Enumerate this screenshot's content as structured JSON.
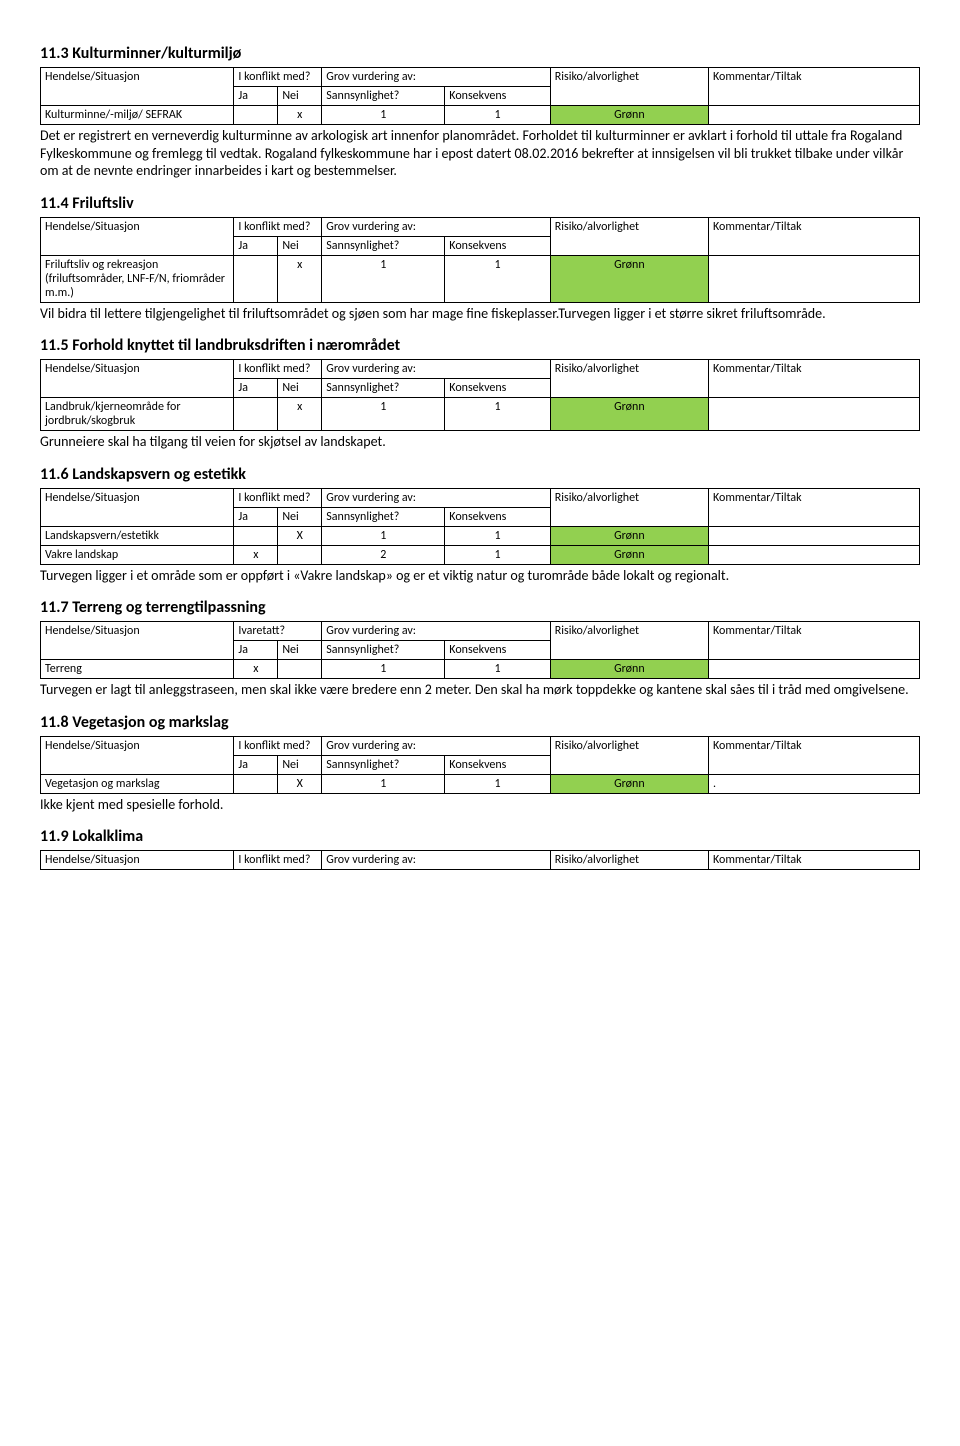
{
  "colors": {
    "green": "#92d050",
    "border": "#000000",
    "text": "#000000",
    "bg": "#ffffff"
  },
  "headers": {
    "hendelse": "Hendelse/Situasjon",
    "ikonflikt": "I konflikt med?",
    "ivaretatt": "Ivaretatt?",
    "grov": "Grov vurdering av:",
    "ja": "Ja",
    "nei": "Nei",
    "sann": "Sannsynlighet?",
    "kons": "Konsekvens",
    "risk": "Risiko/alvorlighet",
    "komm": "Kommentar/Tiltak"
  },
  "sections": {
    "s113": {
      "title": "11.3 Kulturminner/kulturmiljø",
      "row": {
        "label": "Kulturminne/-miljø/ SEFRAK",
        "ja": "",
        "nei": "x",
        "sann": "1",
        "kons": "1",
        "risk": "Grønn",
        "komm": ""
      },
      "body": "Det er registrert en verneverdig  kulturminne av arkologisk art innenfor planområdet. Forholdet til kulturminner er avklart i forhold til uttale fra Rogaland Fylkeskommune og fremlegg til vedtak. Rogaland fylkeskommune  har i epost datert 08.02.2016 bekrefter at innsigelsen vil bli trukket tilbake under vilkår om at de nevnte endringer innarbeides i kart og bestemmelser."
    },
    "s114": {
      "title": "11.4 Friluftsliv",
      "row": {
        "label": "Friluftsliv og rekreasjon (friluftsområder, LNF-F/N, friområder m.m.)",
        "ja": "",
        "nei": "x",
        "sann": "1",
        "kons": "1",
        "risk": "Grønn",
        "komm": ""
      },
      "body": "Vil bidra til lettere tilgjengelighet til friluftsområdet og sjøen som har mage fine fiskeplasser.Turvegen ligger i et større sikret friluftsområde."
    },
    "s115": {
      "title": "11.5 Forhold knyttet til landbruksdriften i nærområdet",
      "row": {
        "label": "Landbruk/kjerneområde for jordbruk/skogbruk",
        "ja": "",
        "nei": "x",
        "sann": "1",
        "kons": "1",
        "risk": "Grønn",
        "komm": ""
      },
      "body": "Grunneiere skal ha tilgang til veien for skjøtsel av landskapet."
    },
    "s116": {
      "title": "11.6 Landskapsvern og estetikk",
      "row1": {
        "label": "Landskapsvern/estetikk",
        "ja": "",
        "nei": "X",
        "sann": "1",
        "kons": "1",
        "risk": "Grønn",
        "komm": ""
      },
      "row2": {
        "label": "Vakre landskap",
        "ja": "x",
        "nei": "",
        "sann": "2",
        "kons": "1",
        "risk": "Grønn",
        "komm": ""
      },
      "body": "Turvegen ligger i et område som er oppført i «Vakre landskap» og er et viktig natur og turområde både lokalt og regionalt."
    },
    "s117": {
      "title": "11.7 Terreng og terrengtilpassning",
      "row": {
        "label": "Terreng",
        "ja": "x",
        "nei": "",
        "sann": "1",
        "kons": "1",
        "risk": "Grønn",
        "komm": ""
      },
      "body": "Turvegen er lagt til anleggstraseen, men skal ikke være bredere enn 2 meter. Den skal ha mørk toppdekke og kantene skal såes til i tråd med omgivelsene."
    },
    "s118": {
      "title": "11.8 Vegetasjon og markslag",
      "row": {
        "label": "Vegetasjon og markslag",
        "ja": "",
        "nei": "X",
        "sann": "1",
        "kons": "1",
        "risk": "Grønn",
        "komm": "."
      },
      "body": "Ikke kjent med spesielle forhold."
    },
    "s119": {
      "title": "11.9 Lokalklima"
    }
  }
}
